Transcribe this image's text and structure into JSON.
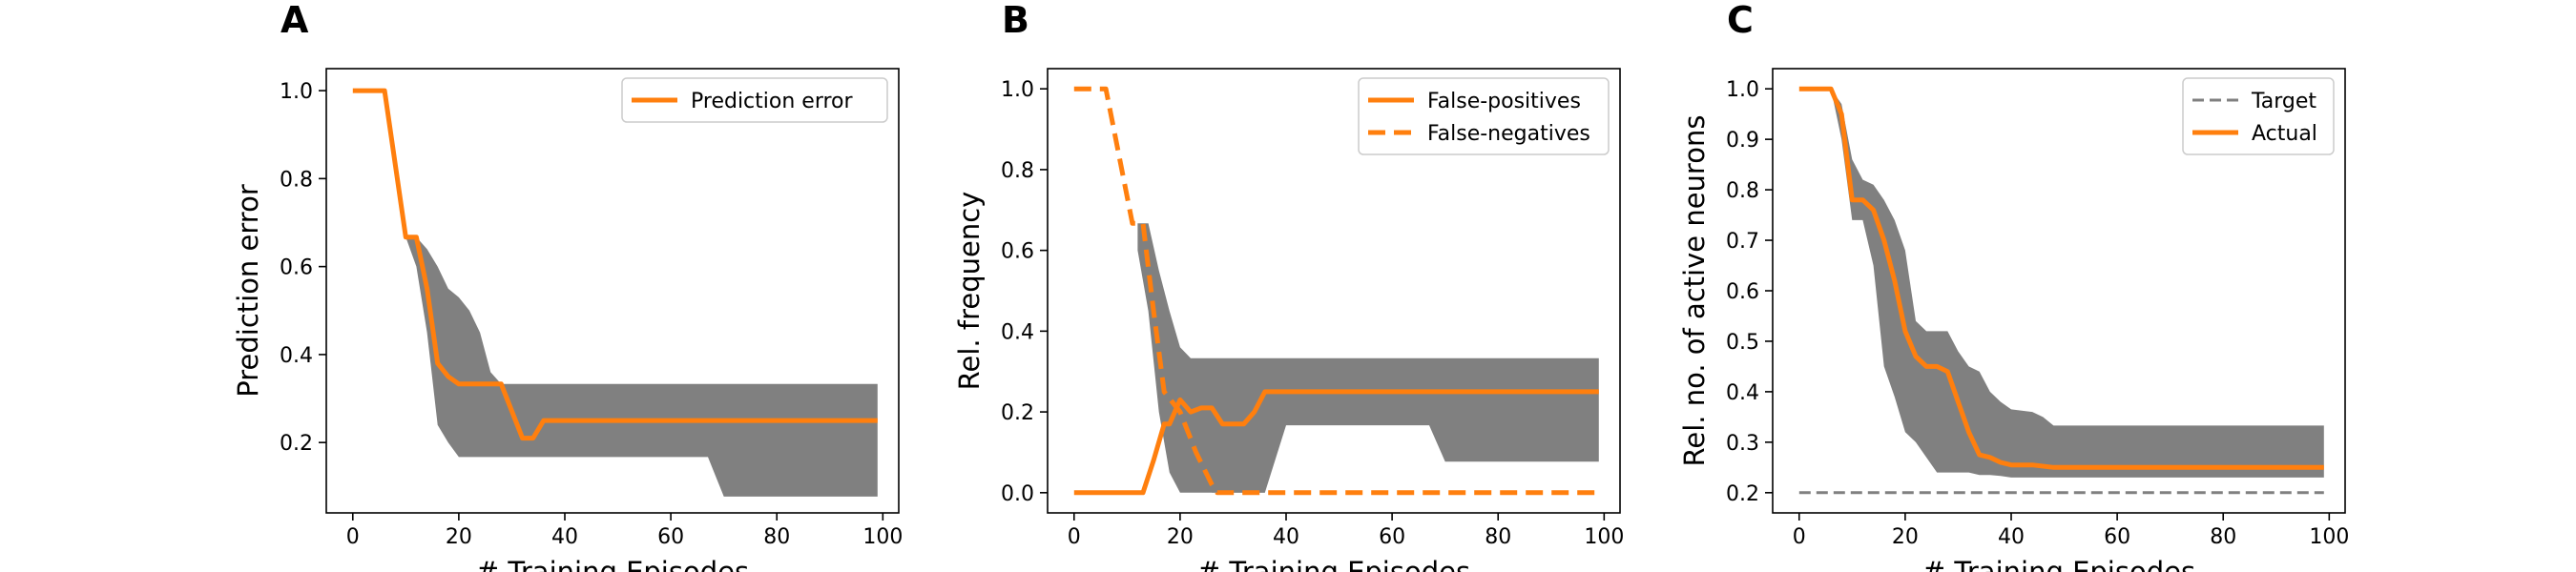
{
  "colors": {
    "line": "#ff7f0e",
    "band": "#808080",
    "target": "#808080",
    "axis": "#000000"
  },
  "chart_data": [
    {
      "type": "line",
      "panel_letter": "A",
      "xlabel": "# Training Episodes",
      "ylabel": "Prediction error",
      "xlim": [
        -5,
        103
      ],
      "ylim": [
        0.04,
        1.05
      ],
      "xticks": [
        "0",
        "20",
        "40",
        "60",
        "80",
        "100"
      ],
      "xtick_values": [
        0,
        20,
        40,
        60,
        80,
        100
      ],
      "yticks": [
        "0.2",
        "0.4",
        "0.6",
        "0.8",
        "1.0"
      ],
      "ytick_values": [
        0.2,
        0.4,
        0.6,
        0.8,
        1.0
      ],
      "grid": false,
      "legend_position": "top-right",
      "series": [
        {
          "name": "Prediction error",
          "style": "solid",
          "x": [
            0,
            6,
            10,
            12,
            14,
            16,
            18,
            20,
            24,
            28,
            32,
            34,
            36,
            38,
            99
          ],
          "y": [
            1.0,
            1.0,
            0.667,
            0.667,
            0.55,
            0.38,
            0.35,
            0.333,
            0.333,
            0.333,
            0.21,
            0.21,
            0.25,
            0.25,
            0.25
          ]
        }
      ],
      "bands": [
        {
          "x": [
            10,
            12,
            14,
            16,
            18,
            20,
            22,
            24,
            26,
            28,
            30,
            36,
            40,
            60,
            67,
            70,
            99
          ],
          "lower": [
            0.667,
            0.6,
            0.45,
            0.24,
            0.2,
            0.167,
            0.167,
            0.167,
            0.167,
            0.167,
            0.167,
            0.167,
            0.167,
            0.167,
            0.167,
            0.077,
            0.077
          ],
          "upper": [
            0.667,
            0.667,
            0.64,
            0.6,
            0.55,
            0.53,
            0.5,
            0.45,
            0.36,
            0.333,
            0.333,
            0.333,
            0.333,
            0.333,
            0.333,
            0.333,
            0.333
          ]
        }
      ]
    },
    {
      "type": "line",
      "panel_letter": "B",
      "xlabel": "# Training Episodes",
      "ylabel": "Rel. frequency",
      "xlim": [
        -5,
        103
      ],
      "ylim": [
        -0.05,
        1.05
      ],
      "xticks": [
        "0",
        "20",
        "40",
        "60",
        "80",
        "100"
      ],
      "xtick_values": [
        0,
        20,
        40,
        60,
        80,
        100
      ],
      "yticks": [
        "0.0",
        "0.2",
        "0.4",
        "0.6",
        "0.8",
        "1.0"
      ],
      "ytick_values": [
        0.0,
        0.2,
        0.4,
        0.6,
        0.8,
        1.0
      ],
      "grid": false,
      "legend_position": "top-right",
      "series": [
        {
          "name": "False-positives",
          "style": "solid",
          "x": [
            0,
            13,
            15,
            17,
            18,
            19,
            20,
            22,
            24,
            26,
            28,
            30,
            32,
            34,
            36,
            99
          ],
          "y": [
            0.0,
            0.0,
            0.08,
            0.17,
            0.17,
            0.2,
            0.23,
            0.2,
            0.21,
            0.21,
            0.17,
            0.17,
            0.17,
            0.2,
            0.25,
            0.25
          ]
        },
        {
          "name": "False-negatives",
          "style": "dashed",
          "x": [
            0,
            6,
            11,
            13,
            15,
            17,
            20,
            23,
            26,
            27,
            30,
            99
          ],
          "y": [
            1.0,
            1.0,
            0.667,
            0.667,
            0.45,
            0.25,
            0.2,
            0.1,
            0.02,
            0.0,
            0.0,
            0.0
          ]
        }
      ],
      "bands": [
        {
          "x": [
            12,
            14,
            16,
            18,
            20,
            22,
            24,
            26,
            28,
            30,
            32,
            34,
            36,
            40,
            60,
            67,
            70,
            99
          ],
          "lower": [
            0.6,
            0.45,
            0.2,
            0.05,
            0.0,
            0.0,
            0.0,
            0.0,
            0.0,
            0.0,
            0.0,
            0.0,
            0.0,
            0.167,
            0.167,
            0.167,
            0.077,
            0.077
          ],
          "upper": [
            0.667,
            0.667,
            0.55,
            0.45,
            0.36,
            0.333,
            0.333,
            0.333,
            0.333,
            0.333,
            0.333,
            0.333,
            0.333,
            0.333,
            0.333,
            0.333,
            0.333,
            0.333
          ]
        },
        {
          "x": [
            26,
            28,
            30,
            32,
            34,
            36
          ],
          "lower": [
            0.0,
            0.0,
            0.0,
            0.0,
            0.0,
            0.0
          ],
          "upper": [
            0.0,
            0.1,
            0.15,
            0.1,
            0.05,
            0.0
          ]
        }
      ]
    },
    {
      "type": "line",
      "panel_letter": "C",
      "xlabel": "# Training Episodes",
      "ylabel": "Rel. no. of active neurons",
      "xlim": [
        -5,
        103
      ],
      "ylim": [
        0.16,
        1.04
      ],
      "xticks": [
        "0",
        "20",
        "40",
        "60",
        "80",
        "100"
      ],
      "xtick_values": [
        0,
        20,
        40,
        60,
        80,
        100
      ],
      "yticks": [
        "0.2",
        "0.3",
        "0.4",
        "0.5",
        "0.6",
        "0.7",
        "0.8",
        "0.9",
        "1.0"
      ],
      "ytick_values": [
        0.2,
        0.3,
        0.4,
        0.5,
        0.6,
        0.7,
        0.8,
        0.9,
        1.0
      ],
      "grid": false,
      "legend_position": "top-right",
      "series": [
        {
          "name": "Target",
          "style": "dashed-thin",
          "x": [
            0,
            99
          ],
          "y": [
            0.2,
            0.2
          ]
        },
        {
          "name": "Actual",
          "style": "solid",
          "x": [
            0,
            6,
            8,
            10,
            12,
            14,
            16,
            18,
            20,
            22,
            24,
            26,
            28,
            30,
            32,
            34,
            36,
            38,
            40,
            44,
            48,
            99
          ],
          "y": [
            1.0,
            1.0,
            0.95,
            0.78,
            0.78,
            0.76,
            0.7,
            0.62,
            0.52,
            0.47,
            0.45,
            0.45,
            0.44,
            0.38,
            0.32,
            0.275,
            0.27,
            0.26,
            0.255,
            0.255,
            0.25,
            0.25
          ]
        }
      ],
      "bands": [
        {
          "x": [
            6,
            8,
            10,
            12,
            14,
            16,
            18,
            20,
            22,
            24,
            26,
            28,
            30,
            32,
            34,
            36,
            38,
            40,
            44,
            46,
            48,
            99
          ],
          "lower": [
            1.0,
            0.9,
            0.74,
            0.74,
            0.65,
            0.45,
            0.39,
            0.32,
            0.3,
            0.27,
            0.24,
            0.24,
            0.24,
            0.24,
            0.235,
            0.235,
            0.233,
            0.23,
            0.23,
            0.23,
            0.23,
            0.23
          ],
          "upper": [
            1.0,
            0.97,
            0.86,
            0.82,
            0.81,
            0.78,
            0.74,
            0.68,
            0.54,
            0.52,
            0.52,
            0.52,
            0.48,
            0.45,
            0.44,
            0.4,
            0.38,
            0.365,
            0.36,
            0.35,
            0.333,
            0.333
          ]
        }
      ]
    }
  ]
}
